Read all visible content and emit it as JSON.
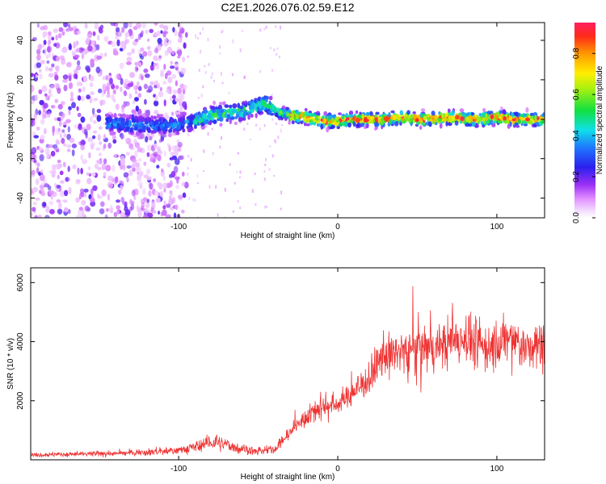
{
  "title": "C2E1.2026.076.02.59.E12",
  "chart_data": [
    {
      "type": "heatmap",
      "xlabel": "Height of straight line (km)",
      "ylabel": "Frequency (Hz)",
      "xlim": [
        -193,
        130
      ],
      "ylim": [
        -50,
        49
      ],
      "xticks": [
        -100,
        0,
        100
      ],
      "yticks": [
        -40,
        -20,
        0,
        20,
        40
      ],
      "colorbar": {
        "label": "Normalized spectral amplitude",
        "range": [
          0,
          0.95
        ],
        "ticks": [
          "0.0",
          "0.2",
          "0.4",
          "0.6",
          "0.8"
        ],
        "colormap": "white-magenta-purple-blue-cyan-green-yellow-orange-red"
      },
      "noise_region_x": [
        -193,
        -95
      ],
      "signal_trace": {
        "x": [
          -145,
          -130,
          -120,
          -110,
          -100,
          -90,
          -80,
          -70,
          -60,
          -50,
          -45,
          -40,
          -35,
          -30,
          -20,
          -10,
          0,
          10,
          20,
          30,
          40,
          50,
          60,
          70,
          80,
          90,
          100,
          110,
          120,
          130
        ],
        "center_hz": [
          -2,
          -3,
          -3,
          -3,
          -3,
          -1,
          2,
          3,
          4,
          7,
          8,
          5,
          3,
          2,
          1,
          -1,
          -1,
          0,
          0,
          0,
          1,
          0,
          0,
          1,
          0,
          0,
          1,
          0,
          0,
          0
        ]
      }
    },
    {
      "type": "line",
      "xlabel": "Height of straight line (km)",
      "ylabel": "SNR (10 * v/v)",
      "xlim": [
        -193,
        130
      ],
      "ylim": [
        0,
        6500
      ],
      "xticks": [
        -100,
        0,
        100
      ],
      "yticks": [
        2000,
        4000,
        6000
      ],
      "color": "#ee3333",
      "series": [
        {
          "x": [
            -193,
            -180,
            -160,
            -140,
            -120,
            -100,
            -90,
            -80,
            -70,
            -60,
            -50,
            -40,
            -30,
            -25,
            -20,
            -10,
            0,
            10,
            20,
            25,
            30,
            40,
            50,
            60,
            70,
            80,
            90,
            100,
            110,
            120,
            130
          ],
          "values": [
            180,
            180,
            190,
            210,
            260,
            320,
            420,
            600,
            500,
            380,
            280,
            350,
            900,
            1200,
            1450,
            1800,
            1900,
            2300,
            2800,
            3200,
            3500,
            3700,
            3800,
            3700,
            4000,
            4200,
            3800,
            3900,
            4100,
            3700,
            3900
          ]
        }
      ]
    }
  ]
}
